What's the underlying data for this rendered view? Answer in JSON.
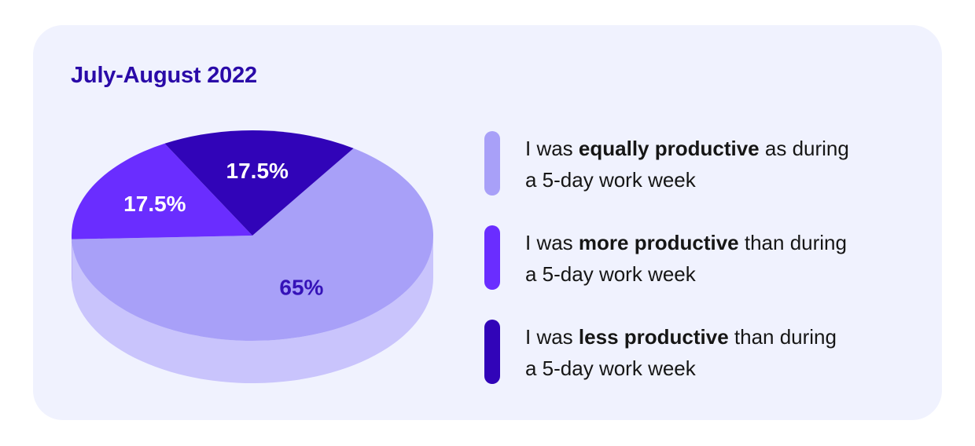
{
  "chart_data": {
    "type": "pie",
    "title": "July-August 2022",
    "slices": [
      {
        "value": 65,
        "label": "65%",
        "color": "#a8a0f8",
        "side_color": "#c9c4fc",
        "text_color": "#3512b8",
        "legend_pre": "I was ",
        "legend_bold": "equally productive",
        "legend_post": " as during",
        "legend_line2": "a 5-day work week"
      },
      {
        "value": 17.5,
        "label": "17.5%",
        "color": "#6a2dff",
        "side_color": "#4d10d6",
        "text_color": "#ffffff",
        "legend_pre": "I was ",
        "legend_bold": "more productive",
        "legend_post": " than during",
        "legend_line2": "a 5-day work week"
      },
      {
        "value": 17.5,
        "label": "17.5%",
        "color": "#3104b8",
        "side_color": "#2a0a9e",
        "text_color": "#ffffff",
        "legend_pre": "I was ",
        "legend_bold": "less productive",
        "legend_post": " than during",
        "legend_line2": "a 5-day work week"
      }
    ]
  }
}
